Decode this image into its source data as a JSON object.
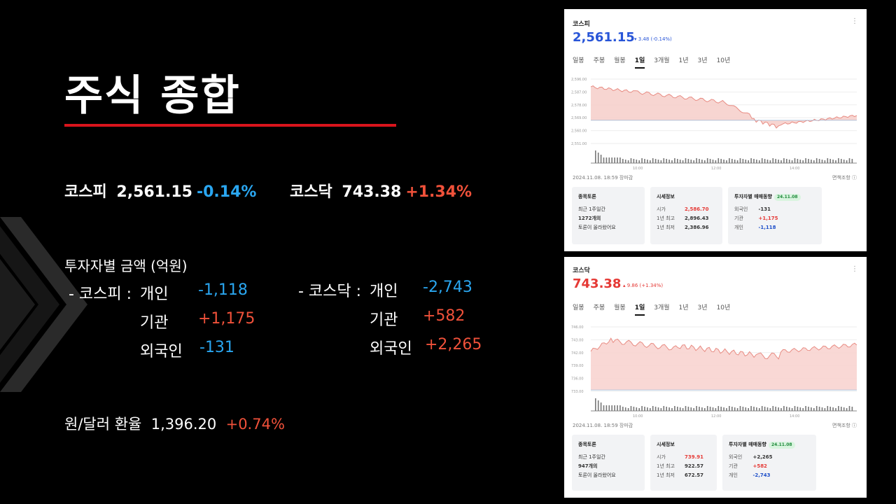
{
  "title": "주식 종합",
  "summary": {
    "kospi_label": "코스피",
    "kospi_value": "2,561.15",
    "kospi_change": "-0.14%",
    "kosdaq_label": "코스닥",
    "kosdaq_value": "743.38",
    "kosdaq_change": "+1.34%"
  },
  "investors": {
    "title": "투자자별 금액 (억원)",
    "kospi_prefix": "- 코스피 :",
    "kosdaq_prefix": "- 코스닥 :",
    "labels": [
      "개인",
      "기관",
      "외국인"
    ],
    "kospi_values": [
      "-1,118",
      "+1,175",
      "-131"
    ],
    "kosdaq_values": [
      "-2,743",
      "+582",
      "+2,265"
    ]
  },
  "fx": {
    "label": "원/달러 환율",
    "value": "1,396.20",
    "change": "+0.74%"
  },
  "cards": {
    "kospi": {
      "name": "코스피",
      "price": "2,561.15",
      "change": "▾ 3.48 (-0.14%)",
      "tabs": [
        "일봉",
        "주봉",
        "월봉",
        "1일",
        "3개월",
        "1년",
        "3년",
        "10년"
      ],
      "active_tab": "1일",
      "timestamp": "2024.11.08. 18:59 장마감",
      "credit": "면책조항 ⓘ",
      "y_ticks": [
        "2,596.00",
        "2,587.00",
        "2,578.00",
        "2,569.00",
        "2,560.00",
        "2,551.00"
      ],
      "x_ticks": [
        "10:00",
        "12:00",
        "14:00"
      ],
      "forum": {
        "title": "종목토론",
        "l1": "최근 1주일간",
        "l2": "1272개의",
        "l3": "토론이 올라왔어요"
      },
      "quote": {
        "title": "시세정보",
        "k1": "시가",
        "v1": "2,586.70",
        "k2": "1년 최고",
        "v2": "2,896.43",
        "k3": "1년 최저",
        "v3": "2,386.96"
      },
      "flow": {
        "title": "투자자별 매매동향",
        "badge": "24.11.08",
        "k1": "외국인",
        "v1": "-131",
        "k2": "기관",
        "v2": "+1,175",
        "k3": "개인",
        "v3": "-1,118"
      }
    },
    "kosdaq": {
      "name": "코스닥",
      "price": "743.38",
      "change": "▴ 9.86 (+1.34%)",
      "tabs": [
        "일봉",
        "주봉",
        "월봉",
        "1일",
        "3개월",
        "1년",
        "3년",
        "10년"
      ],
      "active_tab": "1일",
      "timestamp": "2024.11.08. 18:59 장마감",
      "credit": "면책조항 ⓘ",
      "y_ticks": [
        "746.00",
        "743.00",
        "742.00",
        "739.00",
        "736.00",
        "733.00"
      ],
      "x_ticks": [
        "10:00",
        "12:00",
        "14:00"
      ],
      "forum": {
        "title": "종목토론",
        "l1": "최근 1주일간",
        "l2": "947개의",
        "l3": "토론이 올라왔어요"
      },
      "quote": {
        "title": "시세정보",
        "k1": "시가",
        "v1": "739.91",
        "k2": "1년 최고",
        "v2": "922.57",
        "k3": "1년 최저",
        "v3": "672.57"
      },
      "flow": {
        "title": "투자자별 매매동향",
        "badge": "24.11.08",
        "k1": "외국인",
        "v1": "+2,265",
        "k2": "기관",
        "v2": "+582",
        "k3": "개인",
        "v3": "-2,743"
      }
    }
  },
  "colors": {
    "negative": "#2aa6f0",
    "positive": "#f0513a",
    "rule": "#d8141c",
    "chevron": "#262626"
  }
}
